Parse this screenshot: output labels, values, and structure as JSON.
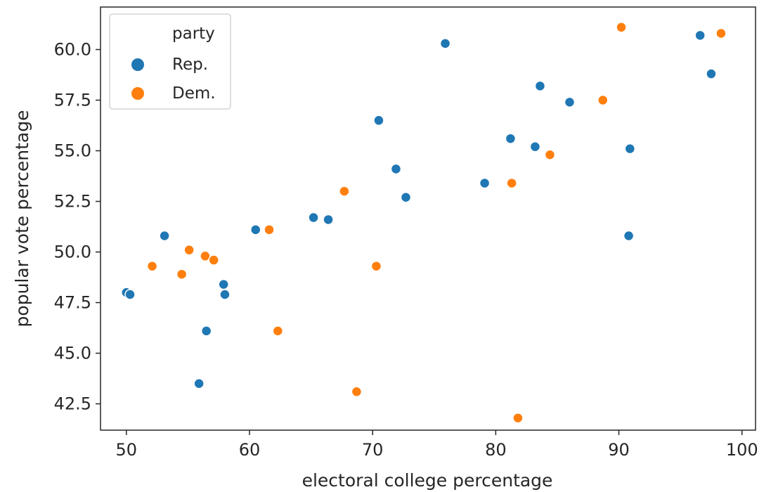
{
  "chart_data": {
    "type": "scatter",
    "title": "",
    "xlabel": "electoral college percentage",
    "ylabel": "popular vote percentage",
    "xlim": [
      47.9,
      101.1
    ],
    "ylim": [
      41.2,
      62.1
    ],
    "xticks": [
      50,
      60,
      70,
      80,
      90,
      100
    ],
    "yticks": [
      42.5,
      45.0,
      47.5,
      50.0,
      52.5,
      55.0,
      57.5,
      60.0
    ],
    "xtick_labels": [
      "50",
      "60",
      "70",
      "80",
      "90",
      "100"
    ],
    "ytick_labels": [
      "42.5",
      "45.0",
      "47.5",
      "50.0",
      "52.5",
      "55.0",
      "57.5",
      "60.0"
    ],
    "grid": false,
    "legend": {
      "title": "party",
      "placement": "top-left"
    },
    "series": [
      {
        "name": "Rep.",
        "color": "#1f77b4",
        "points": [
          [
            50.0,
            48.0
          ],
          [
            50.3,
            47.9
          ],
          [
            53.1,
            50.8
          ],
          [
            55.9,
            43.5
          ],
          [
            56.5,
            46.1
          ],
          [
            57.9,
            48.4
          ],
          [
            58.0,
            47.9
          ],
          [
            60.5,
            51.1
          ],
          [
            65.2,
            51.7
          ],
          [
            66.4,
            51.6
          ],
          [
            70.5,
            56.5
          ],
          [
            71.9,
            54.1
          ],
          [
            72.7,
            52.7
          ],
          [
            75.9,
            60.3
          ],
          [
            79.1,
            53.4
          ],
          [
            81.2,
            55.6
          ],
          [
            83.2,
            55.2
          ],
          [
            83.6,
            58.2
          ],
          [
            86.0,
            57.4
          ],
          [
            90.8,
            50.8
          ],
          [
            90.9,
            55.1
          ],
          [
            96.6,
            60.7
          ],
          [
            97.5,
            58.8
          ]
        ]
      },
      {
        "name": "Dem.",
        "color": "#ff7f0e",
        "points": [
          [
            52.1,
            49.3
          ],
          [
            54.5,
            48.9
          ],
          [
            55.1,
            50.1
          ],
          [
            56.4,
            49.8
          ],
          [
            57.1,
            49.6
          ],
          [
            61.6,
            51.1
          ],
          [
            62.3,
            46.1
          ],
          [
            67.7,
            53.0
          ],
          [
            68.7,
            43.1
          ],
          [
            70.3,
            49.3
          ],
          [
            81.3,
            53.4
          ],
          [
            81.8,
            41.8
          ],
          [
            84.4,
            54.8
          ],
          [
            88.7,
            57.5
          ],
          [
            90.2,
            61.1
          ],
          [
            98.3,
            60.8
          ]
        ]
      }
    ]
  }
}
